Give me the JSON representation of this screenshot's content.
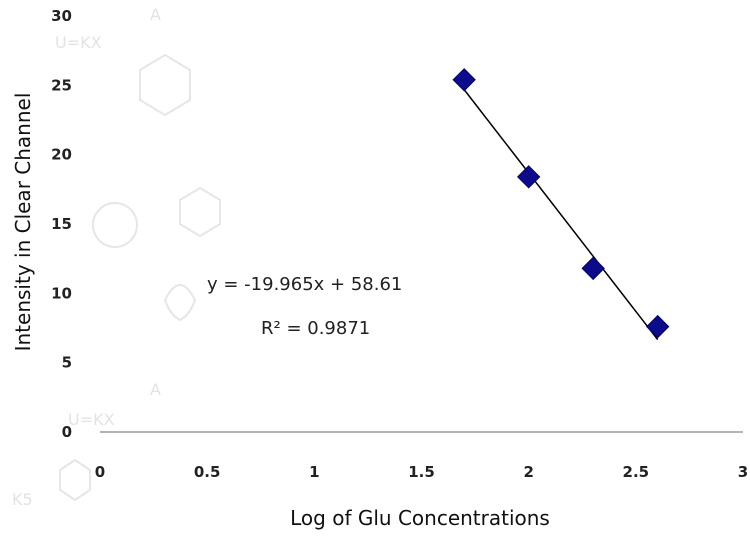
{
  "chart_data": {
    "type": "scatter",
    "xlabel": "Log  of Glu Concentrations",
    "ylabel": "Intensity in Clear Channel",
    "xlim": [
      0,
      3
    ],
    "ylim": [
      0,
      30
    ],
    "x_ticks": [
      0,
      0.5,
      1,
      1.5,
      2,
      2.5,
      3
    ],
    "x_tick_labels": [
      "0",
      "0.5",
      "1",
      "1.5",
      "2",
      "2.5",
      "3"
    ],
    "y_ticks": [
      0,
      5,
      10,
      15,
      20,
      25,
      30
    ],
    "y_tick_labels": [
      "0",
      "5",
      "10",
      "15",
      "20",
      "25",
      "30"
    ],
    "grid": false,
    "legend": "none",
    "series": [
      {
        "x": [
          1.699,
          2.0,
          2.301,
          2.602
        ],
        "y": [
          25.4,
          18.4,
          11.8,
          7.6
        ],
        "marker": "diamond",
        "color": "#0b0b8c"
      }
    ],
    "trendline": {
      "type": "linear",
      "slope": -19.965,
      "intercept": 58.61,
      "x_range": [
        1.699,
        2.602
      ],
      "color": "#000000"
    },
    "annotations": {
      "equation": "y = -19.965x + 58.61",
      "r_squared": "R² = 0.9871"
    }
  }
}
